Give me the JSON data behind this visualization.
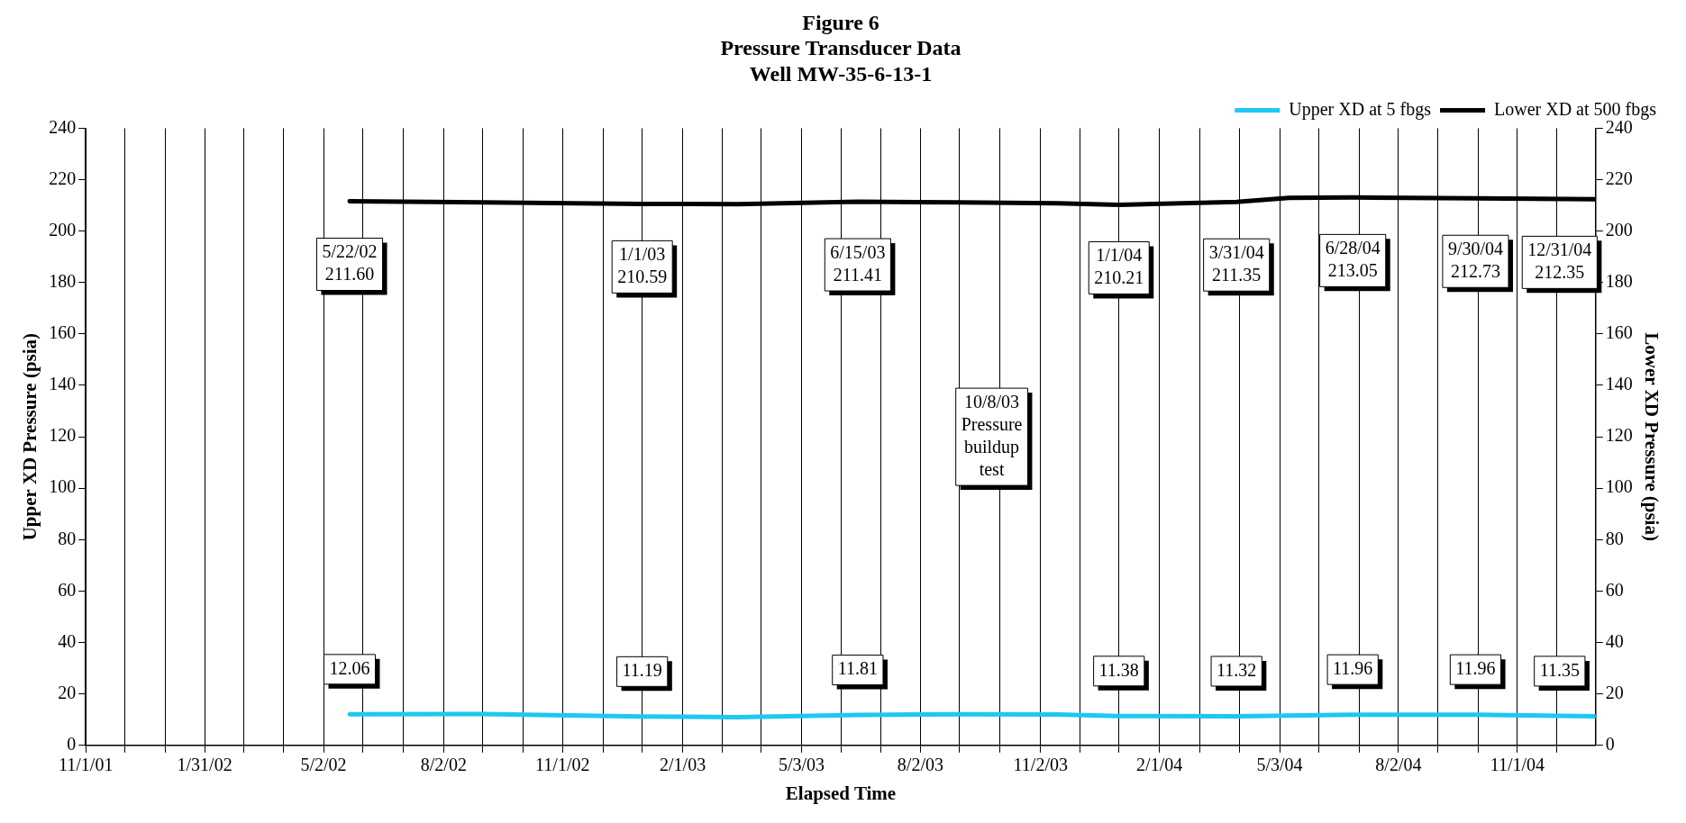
{
  "chart_data": {
    "type": "line",
    "title": "Figure 6\nPressure Transducer Data\nWell MW-35-6-13-1",
    "xlabel": "Elapsed Time",
    "ylabel": "Upper XD Pressure (psia)",
    "y2label": "Lower XD Pressure (psia)",
    "xlim": [
      "2001-11-01",
      "2004-12-31"
    ],
    "xticks": [
      {
        "value": "2001-11-01",
        "label": "11/1/01"
      },
      {
        "value": "2001-12-01",
        "label": null
      },
      {
        "value": "2002-01-01",
        "label": null
      },
      {
        "value": "2002-01-31",
        "label": "1/31/02"
      },
      {
        "value": "2002-03-02",
        "label": null
      },
      {
        "value": "2002-04-01",
        "label": null
      },
      {
        "value": "2002-05-02",
        "label": "5/2/02"
      },
      {
        "value": "2002-06-01",
        "label": null
      },
      {
        "value": "2002-07-02",
        "label": null
      },
      {
        "value": "2002-08-02",
        "label": "8/2/02"
      },
      {
        "value": "2002-09-01",
        "label": null
      },
      {
        "value": "2002-10-02",
        "label": null
      },
      {
        "value": "2002-11-01",
        "label": "11/1/02"
      },
      {
        "value": "2002-12-02",
        "label": null
      },
      {
        "value": "2003-01-01",
        "label": null
      },
      {
        "value": "2003-02-01",
        "label": "2/1/03"
      },
      {
        "value": "2003-03-03",
        "label": null
      },
      {
        "value": "2003-04-02",
        "label": null
      },
      {
        "value": "2003-05-03",
        "label": "5/3/03"
      },
      {
        "value": "2003-06-02",
        "label": null
      },
      {
        "value": "2003-07-03",
        "label": null
      },
      {
        "value": "2003-08-02",
        "label": "8/2/03"
      },
      {
        "value": "2003-09-01",
        "label": null
      },
      {
        "value": "2003-10-02",
        "label": null
      },
      {
        "value": "2003-11-02",
        "label": "11/2/03"
      },
      {
        "value": "2003-12-02",
        "label": null
      },
      {
        "value": "2004-01-01",
        "label": null
      },
      {
        "value": "2004-02-01",
        "label": "2/1/04"
      },
      {
        "value": "2004-03-03",
        "label": null
      },
      {
        "value": "2004-04-02",
        "label": null
      },
      {
        "value": "2004-05-03",
        "label": "5/3/04"
      },
      {
        "value": "2004-06-02",
        "label": null
      },
      {
        "value": "2004-07-03",
        "label": null
      },
      {
        "value": "2004-08-02",
        "label": "8/2/04"
      },
      {
        "value": "2004-09-01",
        "label": null
      },
      {
        "value": "2004-10-02",
        "label": null
      },
      {
        "value": "2004-11-01",
        "label": "11/1/04"
      },
      {
        "value": "2004-12-01",
        "label": null
      }
    ],
    "ylim": [
      0,
      240
    ],
    "yticks": [
      0,
      20,
      40,
      60,
      80,
      100,
      120,
      140,
      160,
      180,
      200,
      220,
      240
    ],
    "y2lim": [
      0,
      240
    ],
    "y2ticks": [
      0,
      20,
      40,
      60,
      80,
      100,
      120,
      140,
      160,
      180,
      200,
      220,
      240
    ],
    "grid": "x",
    "legend": "top right",
    "marker": "none",
    "line_style": "solid",
    "series": [
      {
        "name": "Upper XD at 5 fbgs",
        "color": "#1ec8f0",
        "x": [
          "2002-05-22",
          "2002-09-01",
          "2003-01-01",
          "2003-03-15",
          "2003-06-15",
          "2003-09-01",
          "2003-11-15",
          "2004-01-01",
          "2004-03-31",
          "2004-06-28",
          "2004-09-30",
          "2004-12-31"
        ],
        "values": [
          12.06,
          12.2,
          11.19,
          11.0,
          11.81,
          12.1,
          12.0,
          11.38,
          11.32,
          11.96,
          11.96,
          11.35
        ]
      },
      {
        "name": "Lower XD at 500 fbgs",
        "color": "#000000",
        "axis": "y2",
        "x": [
          "2002-05-22",
          "2002-09-01",
          "2003-01-01",
          "2003-03-15",
          "2003-06-15",
          "2003-09-01",
          "2003-11-15",
          "2004-01-01",
          "2004-03-31",
          "2004-05-10",
          "2004-06-28",
          "2004-09-30",
          "2004-12-31"
        ],
        "values": [
          211.6,
          211.2,
          210.59,
          210.5,
          211.41,
          211.2,
          210.8,
          210.21,
          211.35,
          212.9,
          213.05,
          212.73,
          212.35
        ]
      }
    ],
    "annotations": [
      {
        "text": "5/22/02\n211.60",
        "x": "2002-05-22",
        "y": 211.6
      },
      {
        "text": "1/1/03\n210.59",
        "x": "2003-01-01",
        "y": 210.59
      },
      {
        "text": "6/15/03\n211.41",
        "x": "2003-06-15",
        "y": 211.41
      },
      {
        "text": "1/1/04\n210.21",
        "x": "2004-01-01",
        "y": 210.21
      },
      {
        "text": "3/31/04\n211.35",
        "x": "2004-03-31",
        "y": 211.35
      },
      {
        "text": "6/28/04\n213.05",
        "x": "2004-06-28",
        "y": 213.05
      },
      {
        "text": "9/30/04\n212.73",
        "x": "2004-09-30",
        "y": 212.73
      },
      {
        "text": "12/31/04\n212.35",
        "x": "2004-12-31",
        "y": 212.35
      },
      {
        "text": "12.06",
        "x": "2002-05-22",
        "y": 12.06
      },
      {
        "text": "11.19",
        "x": "2003-01-01",
        "y": 11.19
      },
      {
        "text": "11.81",
        "x": "2003-06-15",
        "y": 11.81
      },
      {
        "text": "11.38",
        "x": "2004-01-01",
        "y": 11.38
      },
      {
        "text": "11.32",
        "x": "2004-03-31",
        "y": 11.32
      },
      {
        "text": "11.96",
        "x": "2004-06-28",
        "y": 11.96
      },
      {
        "text": "11.96",
        "x": "2004-09-30",
        "y": 11.96
      },
      {
        "text": "11.35",
        "x": "2004-12-31",
        "y": 11.35
      },
      "10/8/03\nPressure\nbuildup\ntest"
    ]
  }
}
